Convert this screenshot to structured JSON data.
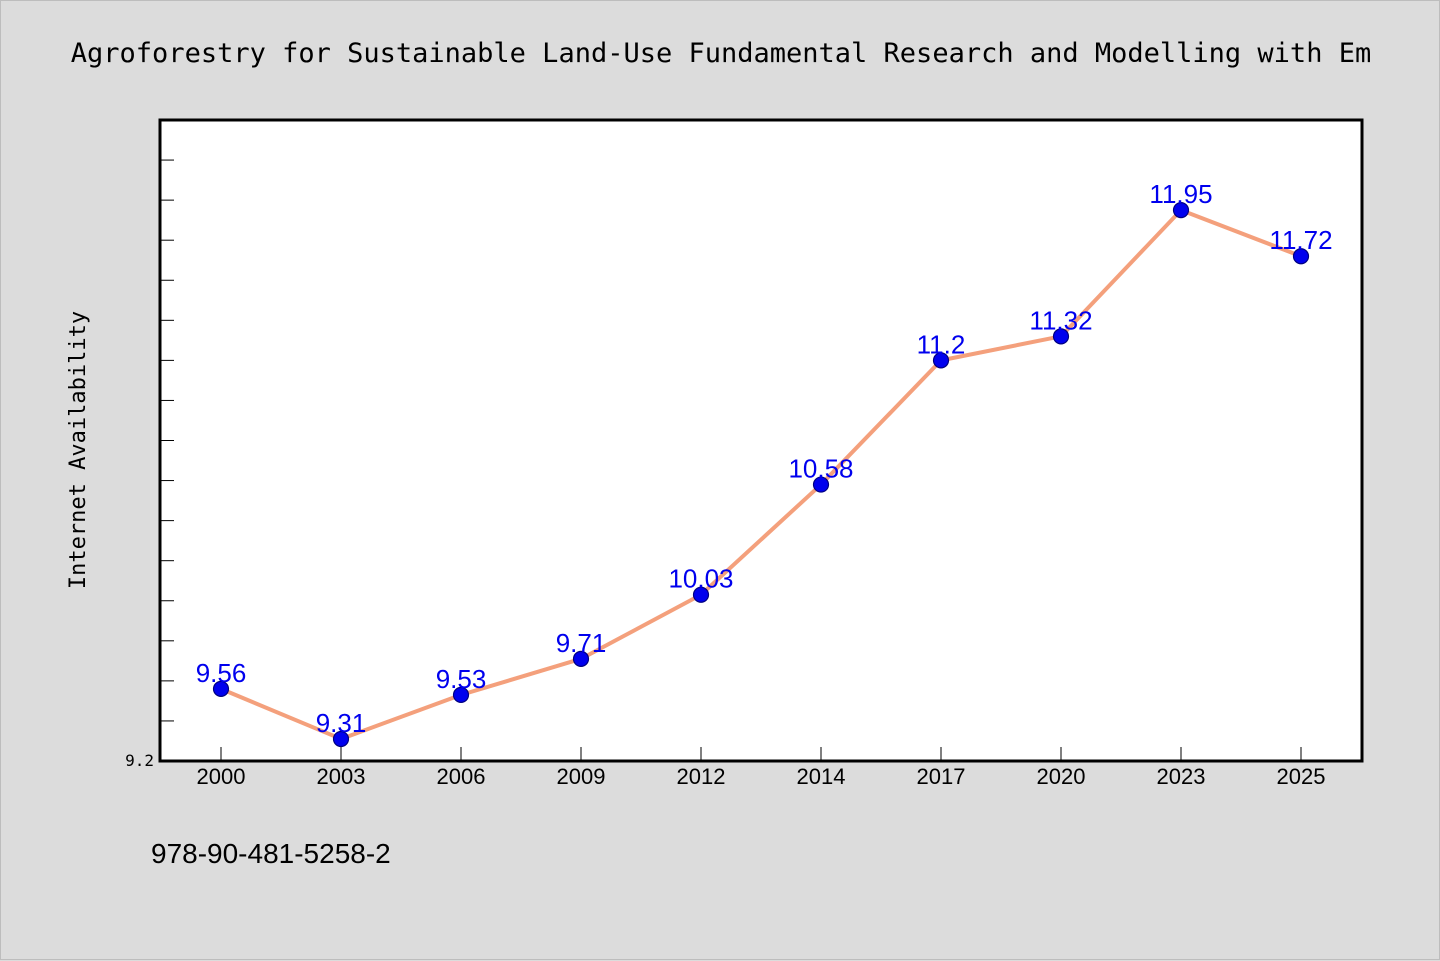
{
  "chart_data": {
    "type": "line",
    "title": "Agroforestry for Sustainable Land-Use Fundamental Research and Modelling with Em",
    "ylabel": "Internet Availability",
    "xlabel": "",
    "categories": [
      "2000",
      "2003",
      "2006",
      "2009",
      "2012",
      "2014",
      "2017",
      "2020",
      "2023",
      "2025"
    ],
    "series": [
      {
        "values": [
          9.56,
          9.31,
          9.53,
          9.71,
          10.03,
          10.58,
          11.2,
          11.32,
          11.95,
          11.72
        ],
        "labels": [
          "9.56",
          "9.31",
          "9.53",
          "9.71",
          "10.03",
          "10.58",
          "11.2",
          "11.32",
          "11.95",
          "11.72"
        ]
      }
    ],
    "ylim": [
      9.2,
      12.4
    ],
    "y_tick_labels": [
      {
        "value": 9.2,
        "label": "9.2"
      }
    ],
    "y_minor_step": 0.2,
    "grid": false,
    "colors": {
      "line": "#f4a07c",
      "marker": "#0000ee",
      "marker_edge": "#000080",
      "data_label": "#0000ee",
      "plot_background": "#ffffff",
      "figure_background": "#dcdcdc"
    }
  },
  "footer": {
    "isbn": "978-90-481-5258-2"
  }
}
